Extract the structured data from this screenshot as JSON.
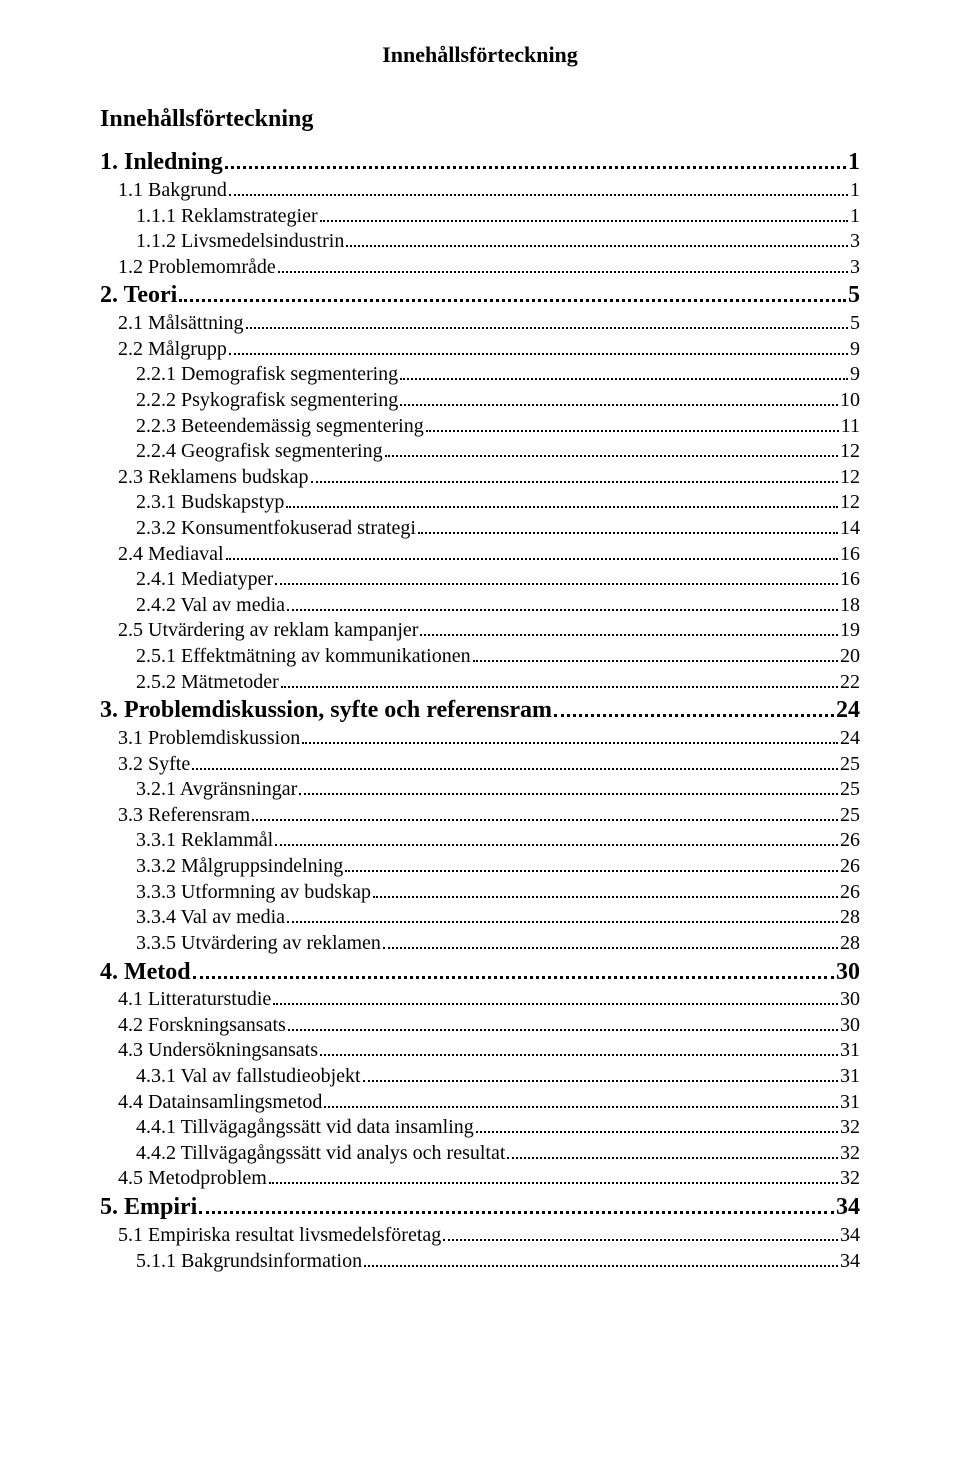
{
  "header": "Innehållsförteckning",
  "title": "Innehållsförteckning",
  "toc": [
    {
      "level": 1,
      "bold": true,
      "text": "1. Inledning",
      "page": "1"
    },
    {
      "level": 2,
      "bold": false,
      "text": "1.1 Bakgrund",
      "page": "1"
    },
    {
      "level": 3,
      "bold": false,
      "text": "1.1.1 Reklamstrategier",
      "page": "1"
    },
    {
      "level": 3,
      "bold": false,
      "text": "1.1.2 Livsmedelsindustrin",
      "page": "3"
    },
    {
      "level": 2,
      "bold": false,
      "text": "1.2 Problemområde",
      "page": "3"
    },
    {
      "level": 1,
      "bold": true,
      "text": "2. Teori",
      "page": "5"
    },
    {
      "level": 2,
      "bold": false,
      "text": "2.1 Målsättning",
      "page": "5"
    },
    {
      "level": 2,
      "bold": false,
      "text": "2.2 Målgrupp",
      "page": "9"
    },
    {
      "level": 3,
      "bold": false,
      "text": "2.2.1 Demografisk segmentering",
      "page": "9"
    },
    {
      "level": 3,
      "bold": false,
      "text": "2.2.2 Psykografisk segmentering",
      "page": "10"
    },
    {
      "level": 3,
      "bold": false,
      "text": "2.2.3 Beteendemässig segmentering",
      "page": "11"
    },
    {
      "level": 3,
      "bold": false,
      "text": "2.2.4 Geografisk segmentering",
      "page": "12"
    },
    {
      "level": 2,
      "bold": false,
      "text": "2.3 Reklamens budskap",
      "page": "12"
    },
    {
      "level": 3,
      "bold": false,
      "text": "2.3.1 Budskapstyp",
      "page": "12"
    },
    {
      "level": 3,
      "bold": false,
      "text": "2.3.2 Konsumentfokuserad strategi",
      "page": "14"
    },
    {
      "level": 2,
      "bold": false,
      "text": "2.4 Mediaval",
      "page": "16"
    },
    {
      "level": 3,
      "bold": false,
      "text": "2.4.1 Mediatyper",
      "page": "16"
    },
    {
      "level": 3,
      "bold": false,
      "text": "2.4.2 Val av media",
      "page": "18"
    },
    {
      "level": 2,
      "bold": false,
      "text": "2.5 Utvärdering av reklam kampanjer",
      "page": "19"
    },
    {
      "level": 3,
      "bold": false,
      "text": "2.5.1 Effektmätning av kommunikationen",
      "page": "20"
    },
    {
      "level": 3,
      "bold": false,
      "text": "2.5.2 Mätmetoder",
      "page": "22"
    },
    {
      "level": 1,
      "bold": true,
      "text": "3. Problemdiskussion, syfte och referensram",
      "page": "24"
    },
    {
      "level": 2,
      "bold": false,
      "text": "3.1 Problemdiskussion",
      "page": "24"
    },
    {
      "level": 2,
      "bold": false,
      "text": "3.2 Syfte",
      "page": "25"
    },
    {
      "level": 3,
      "bold": false,
      "text": "3.2.1 Avgränsningar",
      "page": "25"
    },
    {
      "level": 2,
      "bold": false,
      "text": "3.3 Referensram",
      "page": "25"
    },
    {
      "level": 3,
      "bold": false,
      "text": "3.3.1 Reklammål",
      "page": "26"
    },
    {
      "level": 3,
      "bold": false,
      "text": "3.3.2 Målgruppsindelning",
      "page": "26"
    },
    {
      "level": 3,
      "bold": false,
      "text": "3.3.3 Utformning av budskap",
      "page": "26"
    },
    {
      "level": 3,
      "bold": false,
      "text": "3.3.4 Val av media",
      "page": "28"
    },
    {
      "level": 3,
      "bold": false,
      "text": "3.3.5 Utvärdering av reklamen",
      "page": "28"
    },
    {
      "level": 1,
      "bold": true,
      "text": "4. Metod",
      "page": "30"
    },
    {
      "level": 2,
      "bold": false,
      "text": "4.1 Litteraturstudie",
      "page": "30"
    },
    {
      "level": 2,
      "bold": false,
      "text": "4.2 Forskningsansats",
      "page": "30"
    },
    {
      "level": 2,
      "bold": false,
      "text": "4.3 Undersökningsansats",
      "page": "31"
    },
    {
      "level": 3,
      "bold": false,
      "text": "4.3.1 Val av fallstudieobjekt",
      "page": "31"
    },
    {
      "level": 2,
      "bold": false,
      "text": "4.4 Datainsamlingsmetod",
      "page": "31"
    },
    {
      "level": 3,
      "bold": false,
      "text": "4.4.1 Tillvägagångssätt vid data insamling",
      "page": "32"
    },
    {
      "level": 3,
      "bold": false,
      "text": "4.4.2 Tillvägagångssätt vid analys och resultat",
      "page": "32"
    },
    {
      "level": 2,
      "bold": false,
      "text": "4.5 Metodproblem",
      "page": "32"
    },
    {
      "level": 1,
      "bold": true,
      "text": "5. Empiri",
      "page": "34"
    },
    {
      "level": 2,
      "bold": false,
      "text": "5.1 Empiriska resultat livsmedelsföretag",
      "page": "34"
    },
    {
      "level": 3,
      "bold": false,
      "text": "5.1.1 Bakgrundsinformation",
      "page": "34"
    }
  ]
}
